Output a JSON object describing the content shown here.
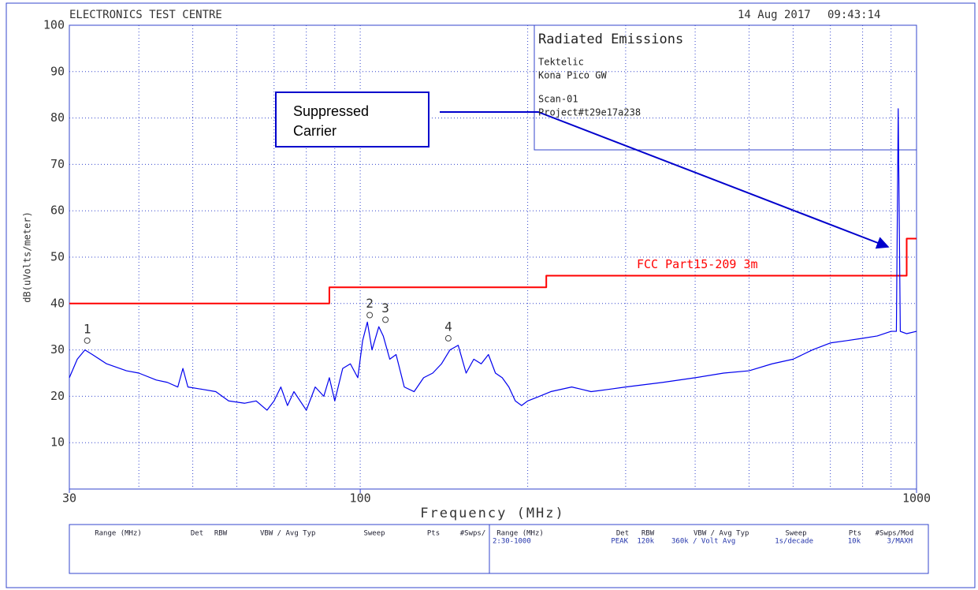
{
  "chart_data": {
    "type": "line",
    "header": {
      "left": "ELECTRONICS TEST CENTRE",
      "date": "14 Aug 2017",
      "time": "09:43:14"
    },
    "info": [
      "Radiated Emissions",
      "Tektelic",
      "Kona Pico GW",
      "Scan-01",
      "Project#t29e17a238"
    ],
    "annotation": [
      "Suppressed",
      "Carrier"
    ],
    "xlabel": "Frequency (MHz)",
    "ylabel": "dB(uVolts/meter)",
    "xscale": "log",
    "xlim": [
      30,
      1000
    ],
    "xticks": [
      30,
      100,
      1000
    ],
    "xgrid": [
      40,
      50,
      60,
      70,
      80,
      90,
      100,
      200,
      300,
      400,
      500,
      600,
      700,
      800,
      900
    ],
    "ylim": [
      0,
      100
    ],
    "yticks": [
      10,
      20,
      30,
      40,
      50,
      60,
      70,
      80,
      90,
      100
    ],
    "grid": true,
    "series": [
      {
        "name": "FCC Part15-209 3m",
        "color": "#ff0000",
        "x": [
          30,
          88,
          88,
          216,
          216,
          960,
          960,
          1000
        ],
        "values": [
          40,
          40,
          43.5,
          43.5,
          46,
          46,
          54,
          54
        ]
      },
      {
        "name": null,
        "color": "#0000ee",
        "x": [
          30,
          31,
          32,
          33,
          35,
          38,
          40,
          43,
          45,
          47,
          48,
          49,
          52,
          55,
          58,
          62,
          65,
          68,
          70,
          72,
          74,
          76,
          80,
          83,
          86,
          88,
          90,
          93,
          96,
          99,
          101,
          103,
          105,
          108,
          110,
          113,
          116,
          120,
          125,
          130,
          135,
          140,
          145,
          150,
          155,
          160,
          165,
          170,
          175,
          180,
          185,
          190,
          195,
          200,
          210,
          220,
          240,
          250,
          260,
          280,
          300,
          350,
          400,
          450,
          500,
          550,
          600,
          650,
          700,
          750,
          800,
          850,
          900,
          920,
          927,
          935,
          960,
          1000
        ],
        "values": [
          24,
          28,
          30,
          29,
          27,
          25.5,
          25,
          23.5,
          23,
          22,
          26,
          22,
          21.5,
          21,
          19,
          18.5,
          19,
          17,
          19,
          22,
          18,
          21,
          17,
          22,
          20,
          24,
          19,
          26,
          27,
          24,
          32,
          36,
          30,
          35,
          33,
          28,
          29,
          22,
          21,
          24,
          25,
          27,
          30,
          31,
          25,
          28,
          27,
          29,
          25,
          24,
          22,
          19,
          18,
          19,
          20,
          21,
          22,
          21.5,
          21,
          21.5,
          22,
          23,
          24,
          25,
          25.5,
          27,
          28,
          30,
          31.5,
          32,
          32.5,
          33,
          34,
          34,
          82,
          34,
          33.5,
          34
        ]
      }
    ],
    "markers": [
      {
        "label": "1",
        "x": 32.3,
        "value": 32
      },
      {
        "label": "2",
        "x": 104,
        "value": 37.5
      },
      {
        "label": "3",
        "x": 111,
        "value": 36.5
      },
      {
        "label": "4",
        "x": 144,
        "value": 32.5
      }
    ],
    "table": {
      "headers_left": [
        "Range (MHz)",
        "Det",
        "RBW",
        "VBW / Avg Typ",
        "Sweep",
        "Pts",
        "#Swps/"
      ],
      "headers_right": [
        "Range (MHz)",
        "Det",
        "RBW",
        "VBW / Avg Typ",
        "Sweep",
        "Pts",
        "#Swps/Mod"
      ],
      "row": [
        "2:30-1000",
        "PEAK",
        "120k",
        "360k / Volt Avg",
        "1s/decade",
        "10k",
        "3/MAXH"
      ]
    }
  }
}
